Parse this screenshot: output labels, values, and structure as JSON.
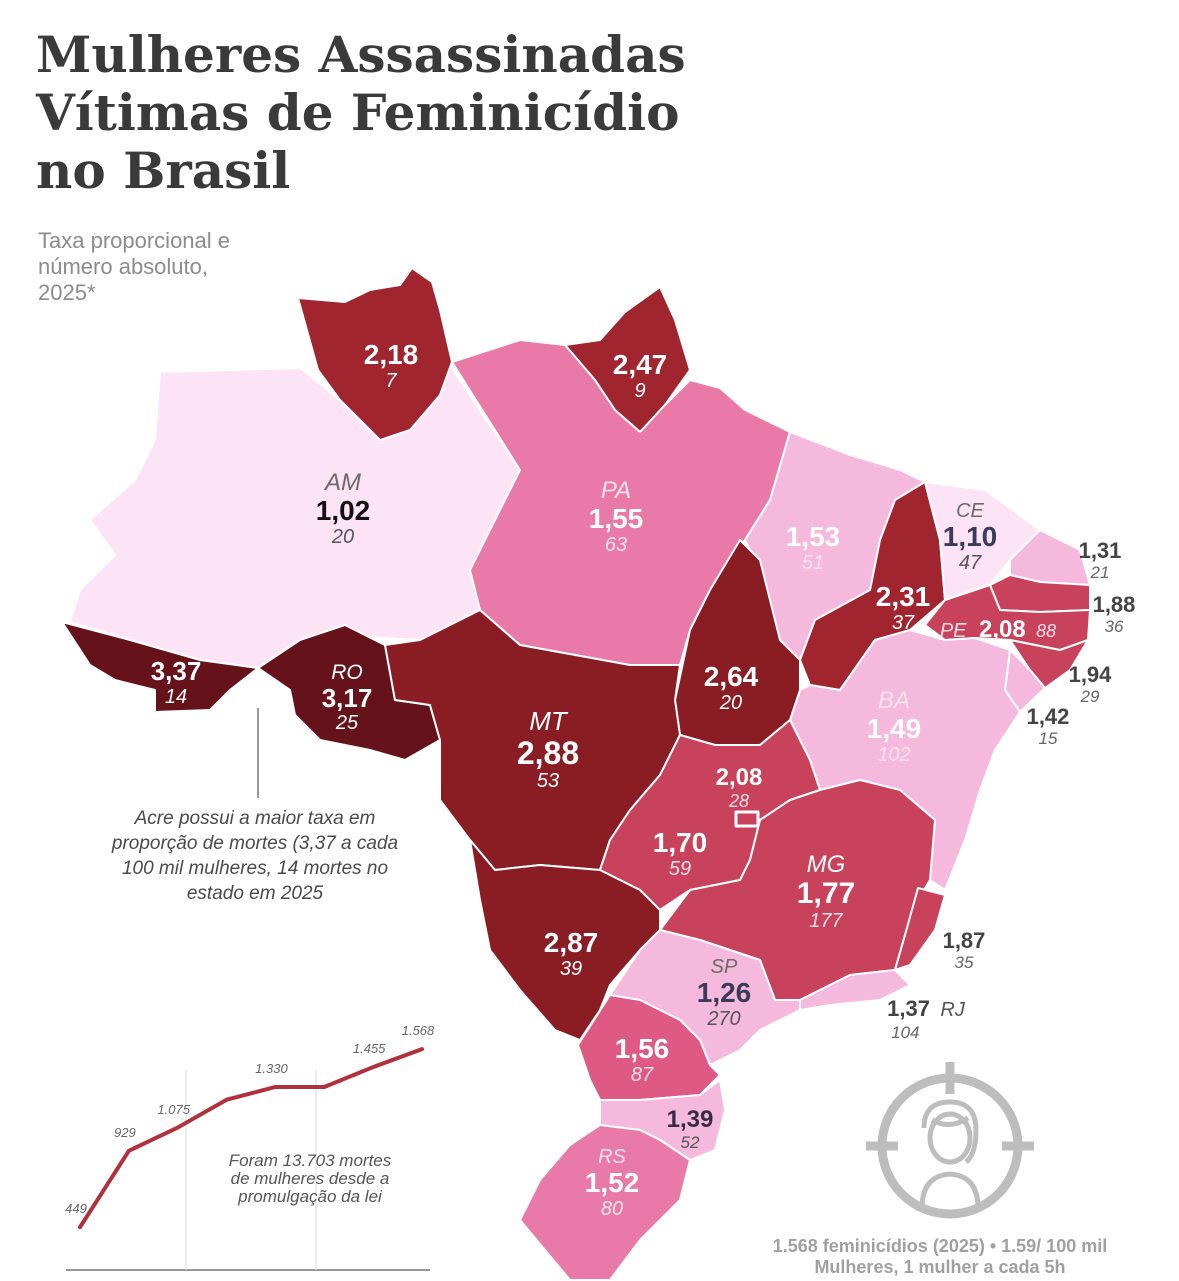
{
  "header": {
    "title_lines": [
      "Mulheres Assassinadas",
      "Vítimas de Feminicídio",
      "no Brasil"
    ],
    "subtitle_lines": [
      "Taxa proporcional e",
      "número absoluto,",
      "2025*"
    ]
  },
  "colors": {
    "lightest": "#fce4f6",
    "light": "#f4b9dc",
    "pink": "#e97aa7",
    "rose": "#de5a85",
    "medium": "#c8425b",
    "dark": "#a0252f",
    "darker": "#8a1c24",
    "darkest": "#66121a"
  },
  "states": [
    {
      "id": "AC",
      "abbr": "",
      "rate": "3,37",
      "count": "14"
    },
    {
      "id": "AM",
      "abbr": "AM",
      "rate": "1,02",
      "count": "20"
    },
    {
      "id": "RR",
      "abbr": "",
      "rate": "2,18",
      "count": "7"
    },
    {
      "id": "AP",
      "abbr": "",
      "rate": "2,47",
      "count": "9"
    },
    {
      "id": "PA",
      "abbr": "PA",
      "rate": "1,55",
      "count": "63"
    },
    {
      "id": "RO",
      "abbr": "RO",
      "rate": "3,17",
      "count": "25"
    },
    {
      "id": "MT",
      "abbr": "MT",
      "rate": "2,88",
      "count": "53"
    },
    {
      "id": "TO",
      "abbr": "",
      "rate": "2,64",
      "count": "20"
    },
    {
      "id": "MA",
      "abbr": "",
      "rate": "1,53",
      "count": "51"
    },
    {
      "id": "PI",
      "abbr": "",
      "rate": "2,31",
      "count": "37"
    },
    {
      "id": "CE",
      "abbr": "CE",
      "rate": "1,10",
      "count": "47"
    },
    {
      "id": "RN",
      "abbr": "",
      "rate": "1,31",
      "count": "21"
    },
    {
      "id": "PB",
      "abbr": "",
      "rate": "1,88",
      "count": "36"
    },
    {
      "id": "PE",
      "abbr": "PE",
      "rate": "2,08",
      "count": "88"
    },
    {
      "id": "AL",
      "abbr": "",
      "rate": "1,94",
      "count": "29"
    },
    {
      "id": "SE",
      "abbr": "",
      "rate": "1,42",
      "count": "15"
    },
    {
      "id": "BA",
      "abbr": "BA",
      "rate": "1,49",
      "count": "102"
    },
    {
      "id": "DF",
      "abbr": "",
      "rate": "2,08",
      "count": "28"
    },
    {
      "id": "GO",
      "abbr": "",
      "rate": "1,70",
      "count": "59"
    },
    {
      "id": "MG",
      "abbr": "MG",
      "rate": "1,77",
      "count": "177"
    },
    {
      "id": "ES",
      "abbr": "",
      "rate": "1,87",
      "count": "35"
    },
    {
      "id": "MS",
      "abbr": "",
      "rate": "2,87",
      "count": "39"
    },
    {
      "id": "SP",
      "abbr": "SP",
      "rate": "1,26",
      "count": "270"
    },
    {
      "id": "RJ",
      "abbr": "RJ",
      "rate": "1,37",
      "count": "104"
    },
    {
      "id": "PR",
      "abbr": "",
      "rate": "1,56",
      "count": "87"
    },
    {
      "id": "SC",
      "abbr": "",
      "rate": "1,39",
      "count": "52"
    },
    {
      "id": "RS",
      "abbr": "RS",
      "rate": "1,52",
      "count": "80"
    }
  ],
  "annotation": {
    "acre_lines": [
      "Acre possui a maior taxa em",
      "proporção de mortes (3,37 a cada",
      "100 mil mulheres, 14 mortes no",
      "estado em 2025"
    ]
  },
  "chart_data": {
    "type": "line",
    "title": "",
    "xlabel": "",
    "ylabel": "",
    "values": [
      449,
      929,
      1075,
      1330,
      1455,
      1568
    ],
    "labels": [
      "449",
      "929",
      "1.075",
      "1.330",
      "1.455",
      "1.568"
    ],
    "series_points": [
      449,
      929,
      1075,
      1250,
      1330,
      1330,
      1455,
      1568
    ],
    "ylim": [
      400,
      1600
    ],
    "note_lines": [
      "Foram 13.703 mortes",
      "de mulheres desde a",
      "promulgação da lei"
    ]
  },
  "footer": {
    "lines": [
      "1.568 feminicídios (2025) • 1.59/ 100 mil",
      "Mulheres, 1 mulher a cada 5h"
    ]
  }
}
